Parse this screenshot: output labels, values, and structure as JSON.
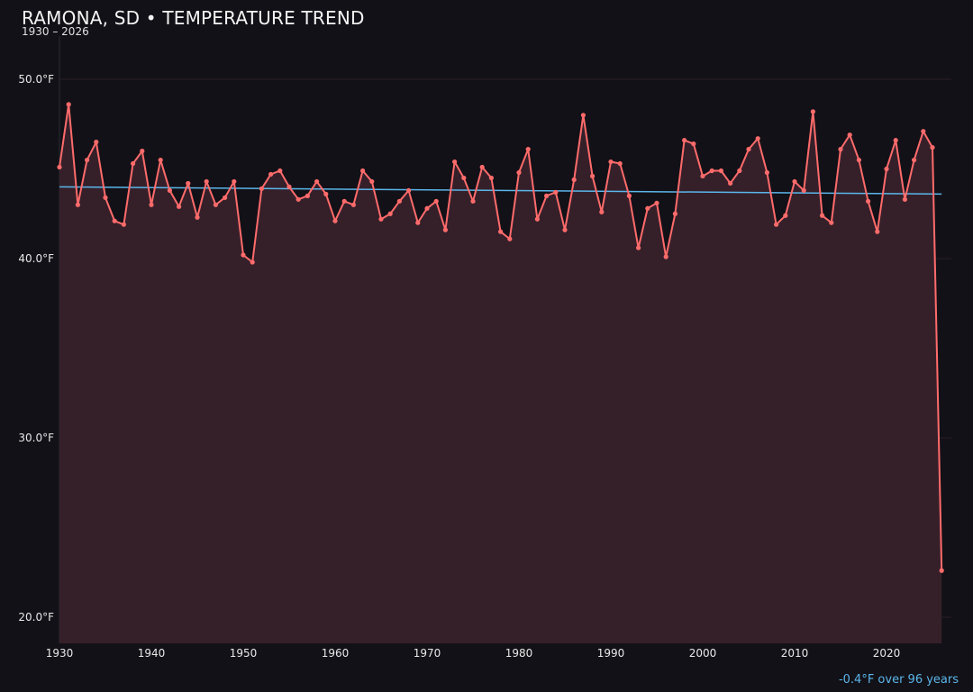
{
  "header": {
    "title": "RAMONA, SD • TEMPERATURE TREND",
    "subtitle": "1930 – 2026"
  },
  "footnote": "-0.4°F over 96 years",
  "colors": {
    "background": "#121117",
    "line": "#ff6b6b",
    "fill": "#35202a",
    "trend": "#5bb6ea",
    "grid": "#2a2026"
  },
  "chart_data": {
    "type": "area",
    "title": "RAMONA, SD • TEMPERATURE TREND",
    "subtitle": "1930 – 2026",
    "xlabel": "",
    "ylabel": "",
    "xlim": [
      1930,
      2027
    ],
    "ylim": [
      18.5,
      52.5
    ],
    "grid": true,
    "x_ticks": [
      1930,
      1940,
      1950,
      1960,
      1970,
      1980,
      1990,
      2000,
      2010,
      2020
    ],
    "y_ticks": [
      {
        "value": 20,
        "label": "20.0°F"
      },
      {
        "value": 30,
        "label": "30.0°F"
      },
      {
        "value": 40,
        "label": "40.0°F"
      },
      {
        "value": 50,
        "label": "50.0°F"
      }
    ],
    "series": [
      {
        "x_start": 1930,
        "values": [
          45.1,
          48.6,
          43.0,
          45.5,
          46.5,
          43.4,
          42.1,
          41.9,
          45.3,
          46.0,
          43.0,
          45.5,
          43.8,
          42.9,
          44.2,
          42.3,
          44.3,
          43.0,
          43.4,
          44.3,
          40.2,
          39.8,
          43.9,
          44.7,
          44.9,
          44.0,
          43.3,
          43.5,
          44.3,
          43.6,
          42.1,
          43.2,
          43.0,
          44.9,
          44.3,
          42.2,
          42.5,
          43.2,
          43.8,
          42.0,
          42.8,
          43.2,
          41.6,
          45.4,
          44.5,
          43.2,
          45.1,
          44.5,
          41.5,
          41.1,
          44.8,
          46.1,
          42.2,
          43.5,
          43.7,
          41.6,
          44.4,
          48.0,
          44.6,
          42.6,
          45.4,
          45.3,
          43.5,
          40.6,
          42.8,
          43.1,
          40.1,
          42.5,
          46.6,
          46.4,
          44.6,
          44.9,
          44.9,
          44.2,
          44.9,
          46.1,
          46.7,
          44.8,
          41.9,
          42.4,
          44.3,
          43.8,
          48.2,
          42.4,
          42.0,
          46.1,
          46.9,
          45.5,
          43.2,
          41.5,
          45.0,
          46.6,
          43.3,
          45.5,
          47.1,
          46.2,
          22.6
        ]
      }
    ],
    "trend_line": {
      "x": [
        1930,
        2026
      ],
      "y": [
        44.0,
        43.6
      ]
    }
  }
}
